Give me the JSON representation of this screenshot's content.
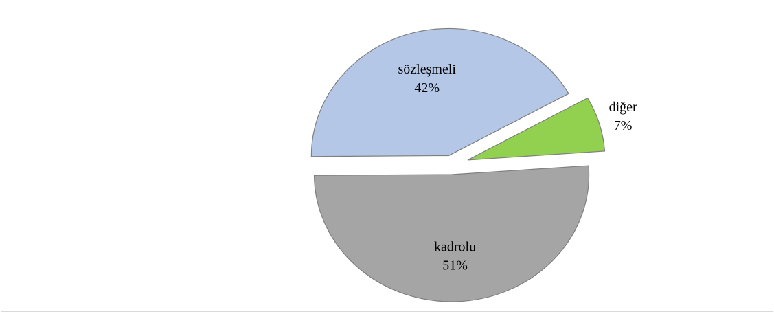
{
  "chart_data": {
    "type": "pie",
    "categories": [
      "kadrolu",
      "sözleşmeli",
      "diğer"
    ],
    "values": [
      51,
      42,
      7
    ],
    "value_labels": [
      "51%",
      "42%",
      "7%"
    ],
    "colors": [
      "#a5a5a5",
      "#b4c7e7",
      "#92d050"
    ]
  }
}
